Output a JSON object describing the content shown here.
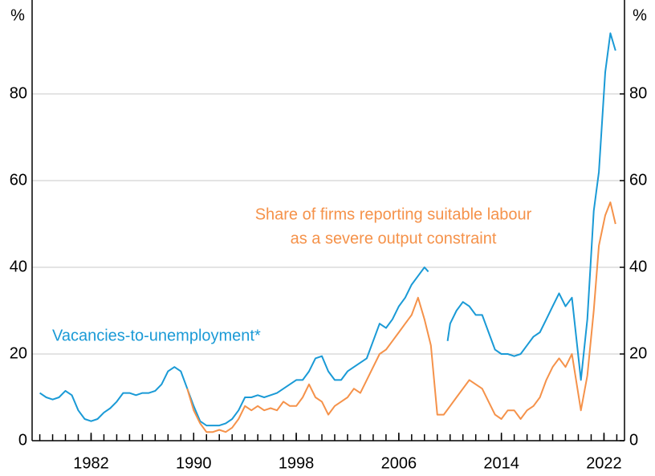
{
  "chart_data": {
    "type": "line",
    "y_label_left": "%",
    "y_label_right": "%",
    "xlim": [
      1977.4,
      2023.6
    ],
    "xticks": [
      1982,
      1990,
      1998,
      2006,
      2014,
      2022
    ],
    "xminorticks": [
      1978,
      1979,
      1980,
      1981,
      1982,
      1983,
      1984,
      1985,
      1986,
      1987,
      1988,
      1989,
      1990,
      1991,
      1992,
      1993,
      1994,
      1995,
      1996,
      1997,
      1998,
      1999,
      2000,
      2001,
      2002,
      2003,
      2004,
      2005,
      2006,
      2007,
      2008,
      2009,
      2010,
      2011,
      2012,
      2013,
      2014,
      2015,
      2016,
      2017,
      2018,
      2019,
      2020,
      2021,
      2022,
      2023
    ],
    "ylim": [
      0,
      100
    ],
    "yticks": [
      0,
      20,
      40,
      60,
      80
    ],
    "y2lim": [
      0,
      100
    ],
    "y2ticks": [
      0,
      20,
      40,
      60,
      80
    ],
    "grid": true,
    "series": [
      {
        "name": "Vacancies-to-unemployment*",
        "color": "#1a9ad6",
        "x": [
          1978,
          1978.5,
          1979,
          1979.5,
          1980,
          1980.5,
          1981,
          1981.5,
          1982,
          1982.5,
          1983,
          1983.5,
          1984,
          1984.5,
          1985,
          1985.5,
          1986,
          1986.5,
          1987,
          1987.5,
          1988,
          1988.5,
          1989,
          1989.5,
          1990,
          1990.5,
          1991,
          1991.5,
          1992,
          1992.5,
          1993,
          1993.5,
          1994,
          1994.5,
          1995,
          1995.5,
          1996,
          1996.5,
          1997,
          1997.5,
          1998,
          1998.5,
          1999,
          1999.5,
          2000,
          2000.5,
          2001,
          2001.5,
          2002,
          2002.5,
          2003,
          2003.5,
          2004,
          2004.5,
          2005,
          2005.5,
          2006,
          2006.5,
          2007,
          2007.5,
          2008,
          2008.3,
          2009,
          2009.8,
          2010,
          2010.5,
          2011,
          2011.5,
          2012,
          2012.5,
          2013,
          2013.5,
          2014,
          2014.5,
          2015,
          2015.5,
          2016,
          2016.5,
          2017,
          2017.5,
          2018,
          2018.5,
          2019,
          2019.5,
          2020.2,
          2020.7,
          2021.2,
          2021.6,
          2022.1,
          2022.5,
          2022.9
        ],
        "values": [
          11,
          10,
          9.5,
          10,
          11.5,
          10.5,
          7,
          5,
          4.5,
          5,
          6.5,
          7.5,
          9,
          11,
          11,
          10.5,
          11,
          11,
          11.5,
          13,
          16,
          17,
          16,
          12,
          8,
          4.5,
          3.5,
          3.5,
          3.5,
          4,
          5,
          7,
          10,
          10,
          10.5,
          10,
          10.5,
          11,
          12,
          13,
          14,
          14,
          16,
          19,
          19.5,
          16,
          14,
          14,
          16,
          17,
          18,
          19,
          23,
          27,
          26,
          28,
          31,
          33,
          36,
          38,
          40,
          39,
          null,
          23,
          27,
          30,
          32,
          31,
          29,
          29,
          25,
          21,
          20,
          20,
          19.5,
          20,
          22,
          24,
          25,
          28,
          31,
          34,
          31,
          33,
          14,
          28,
          53,
          62,
          85,
          94,
          90
        ]
      },
      {
        "name": "Share of firms reporting suitable labour as a severe output constraint",
        "color": "#f5924a",
        "x": [
          1989.5,
          1990,
          1990.5,
          1991,
          1991.5,
          1992,
          1992.5,
          1993,
          1993.5,
          1994,
          1994.5,
          1995,
          1995.5,
          1996,
          1996.5,
          1997,
          1997.5,
          1998,
          1998.5,
          1999,
          1999.5,
          2000,
          2000.5,
          2001,
          2001.5,
          2002,
          2002.5,
          2003,
          2003.5,
          2004,
          2004.5,
          2005,
          2005.5,
          2006,
          2006.5,
          2007,
          2007.5,
          2008,
          2008.5,
          2009,
          2009.5,
          2010,
          2010.5,
          2011,
          2011.5,
          2012,
          2012.5,
          2013,
          2013.5,
          2014,
          2014.5,
          2015,
          2015.5,
          2016,
          2016.5,
          2017,
          2017.5,
          2018,
          2018.5,
          2019,
          2019.5,
          2020.2,
          2020.7,
          2021.2,
          2021.6,
          2022.1,
          2022.5,
          2022.9
        ],
        "values": [
          12,
          7,
          4,
          2,
          2,
          2.5,
          2,
          3,
          5,
          8,
          7,
          8,
          7,
          7.5,
          7,
          9,
          8,
          8,
          10,
          13,
          10,
          9,
          6,
          8,
          9,
          10,
          12,
          11,
          14,
          17,
          20,
          21,
          23,
          25,
          27,
          29,
          33,
          28,
          22,
          6,
          6,
          8,
          10,
          12,
          14,
          13,
          12,
          9,
          6,
          5,
          7,
          7,
          5,
          7,
          8,
          10,
          14,
          17,
          19,
          17,
          20,
          7,
          15,
          30,
          45,
          52,
          55,
          50
        ]
      }
    ],
    "annotations": [
      {
        "text": "Vacancies-to-unemployment*",
        "series": 0
      },
      {
        "text": "Share of firms reporting suitable labour",
        "series": 1
      },
      {
        "text": "as a severe output constraint",
        "series": 1
      }
    ]
  }
}
